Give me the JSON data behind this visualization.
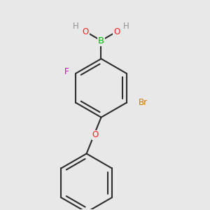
{
  "bg_color": "#e8e8e8",
  "bond_color": "#2d2d2d",
  "bond_width": 1.5,
  "atom_colors": {
    "B": "#00bb00",
    "O": "#ff2020",
    "F": "#cc00cc",
    "Br": "#cc7700",
    "H": "#909090",
    "C": "#2d2d2d"
  },
  "font_size": 8.5,
  "fig_size": [
    3.0,
    3.0
  ],
  "dpi": 100
}
